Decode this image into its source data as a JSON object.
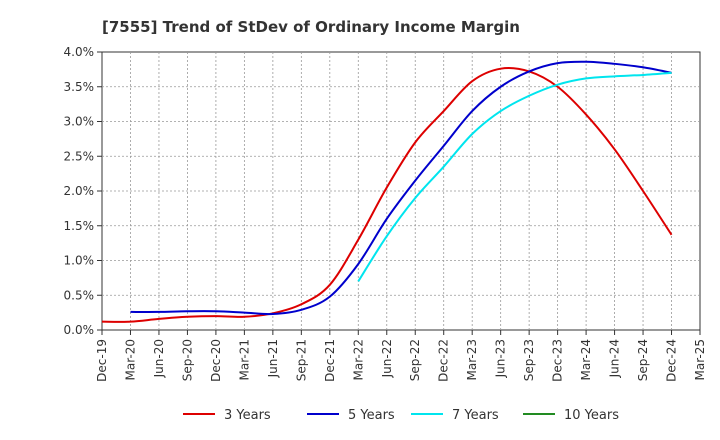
{
  "chart_data": {
    "type": "line",
    "title": "[7555]  Trend of StDev of Ordinary Income Margin",
    "xlabel": "",
    "ylabel": "",
    "ylim": [
      0,
      4.0
    ],
    "x_ticks": [
      "Dec-19",
      "Mar-20",
      "Jun-20",
      "Sep-20",
      "Dec-20",
      "Mar-21",
      "Jun-21",
      "Sep-21",
      "Dec-21",
      "Mar-22",
      "Jun-22",
      "Sep-22",
      "Dec-22",
      "Mar-23",
      "Jun-23",
      "Sep-23",
      "Dec-23",
      "Mar-24",
      "Jun-24",
      "Sep-24",
      "Dec-24",
      "Mar-25"
    ],
    "y_ticks": [
      "0.0%",
      "0.5%",
      "1.0%",
      "1.5%",
      "2.0%",
      "2.5%",
      "3.0%",
      "3.5%",
      "4.0%"
    ],
    "grid": true,
    "legend_position": "bottom",
    "series": [
      {
        "name": "3 Years",
        "color": "#dd0000",
        "x": [
          "Dec-19",
          "Mar-20",
          "Jun-20",
          "Sep-20",
          "Dec-20",
          "Mar-21",
          "Jun-21",
          "Sep-21",
          "Dec-21",
          "Mar-22",
          "Jun-22",
          "Sep-22",
          "Dec-22",
          "Mar-23",
          "Jun-23",
          "Sep-23",
          "Dec-23",
          "Mar-24",
          "Jun-24",
          "Sep-24",
          "Dec-24"
        ],
        "values": [
          0.12,
          0.12,
          0.16,
          0.19,
          0.2,
          0.19,
          0.24,
          0.37,
          0.65,
          1.3,
          2.05,
          2.7,
          3.15,
          3.58,
          3.76,
          3.72,
          3.5,
          3.1,
          2.6,
          2.0,
          1.37
        ]
      },
      {
        "name": "5 Years",
        "color": "#0000cc",
        "x": [
          "Mar-20",
          "Jun-20",
          "Sep-20",
          "Dec-20",
          "Mar-21",
          "Jun-21",
          "Sep-21",
          "Dec-21",
          "Mar-22",
          "Jun-22",
          "Sep-22",
          "Dec-22",
          "Mar-23",
          "Jun-23",
          "Sep-23",
          "Dec-23",
          "Mar-24",
          "Jun-24",
          "Sep-24",
          "Dec-24"
        ],
        "values": [
          0.26,
          0.26,
          0.27,
          0.27,
          0.25,
          0.23,
          0.29,
          0.48,
          0.95,
          1.6,
          2.15,
          2.65,
          3.15,
          3.5,
          3.72,
          3.84,
          3.86,
          3.83,
          3.78,
          3.7
        ]
      },
      {
        "name": "7 Years",
        "color": "#00e5ee",
        "x": [
          "Mar-22",
          "Jun-22",
          "Sep-22",
          "Dec-22",
          "Mar-23",
          "Jun-23",
          "Sep-23",
          "Dec-23",
          "Mar-24",
          "Jun-24",
          "Sep-24",
          "Dec-24"
        ],
        "values": [
          0.7,
          1.35,
          1.9,
          2.35,
          2.82,
          3.15,
          3.37,
          3.53,
          3.62,
          3.65,
          3.67,
          3.7
        ]
      },
      {
        "name": "10 Years",
        "color": "#228b22",
        "x": [],
        "values": []
      }
    ]
  }
}
